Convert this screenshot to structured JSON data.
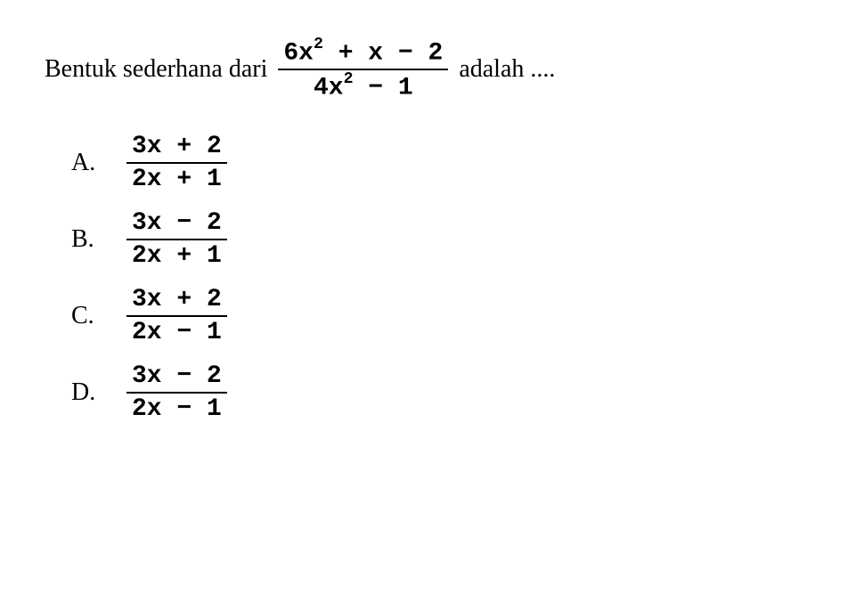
{
  "question": {
    "prefix": "Bentuk sederhana dari",
    "suffix": "adalah ....",
    "fraction": {
      "numerator_parts": [
        "6x",
        "2",
        " + x − 2"
      ],
      "denominator_parts": [
        "4x",
        "2",
        " − 1"
      ]
    }
  },
  "options": [
    {
      "label": "A.",
      "numerator": "3x + 2",
      "denominator": "2x + 1"
    },
    {
      "label": "B.",
      "numerator": "3x − 2",
      "denominator": "2x + 1"
    },
    {
      "label": "C.",
      "numerator": "3x + 2",
      "denominator": "2x − 1"
    },
    {
      "label": "D.",
      "numerator": "3x − 2",
      "denominator": "2x − 1"
    }
  ]
}
